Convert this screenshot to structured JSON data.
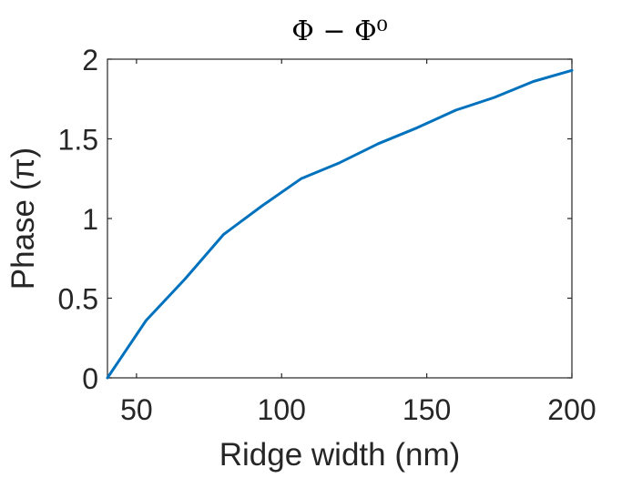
{
  "chart_data": {
    "type": "line",
    "title": "Φ − Φ⁰",
    "xlabel": "Ridge width (nm)",
    "ylabel": "Phase  (π)",
    "xlim": [
      40,
      200
    ],
    "ylim": [
      0,
      2
    ],
    "xticks": [
      50,
      100,
      150,
      200
    ],
    "xtick_labels": [
      "50",
      "100",
      "150",
      "200"
    ],
    "yticks": [
      0,
      0.5,
      1,
      1.5,
      2
    ],
    "ytick_labels": [
      "0",
      "0.5",
      "1",
      "1.5",
      "2"
    ],
    "grid": false,
    "series": [
      {
        "color": "#0072BD",
        "x": [
          40,
          53.3,
          66.7,
          80,
          93.3,
          106.7,
          120,
          133.3,
          146.7,
          160,
          173.3,
          186.7,
          200
        ],
        "y": [
          0,
          0.36,
          0.62,
          0.9,
          1.08,
          1.25,
          1.35,
          1.47,
          1.57,
          1.68,
          1.76,
          1.86,
          1.93
        ]
      }
    ]
  }
}
